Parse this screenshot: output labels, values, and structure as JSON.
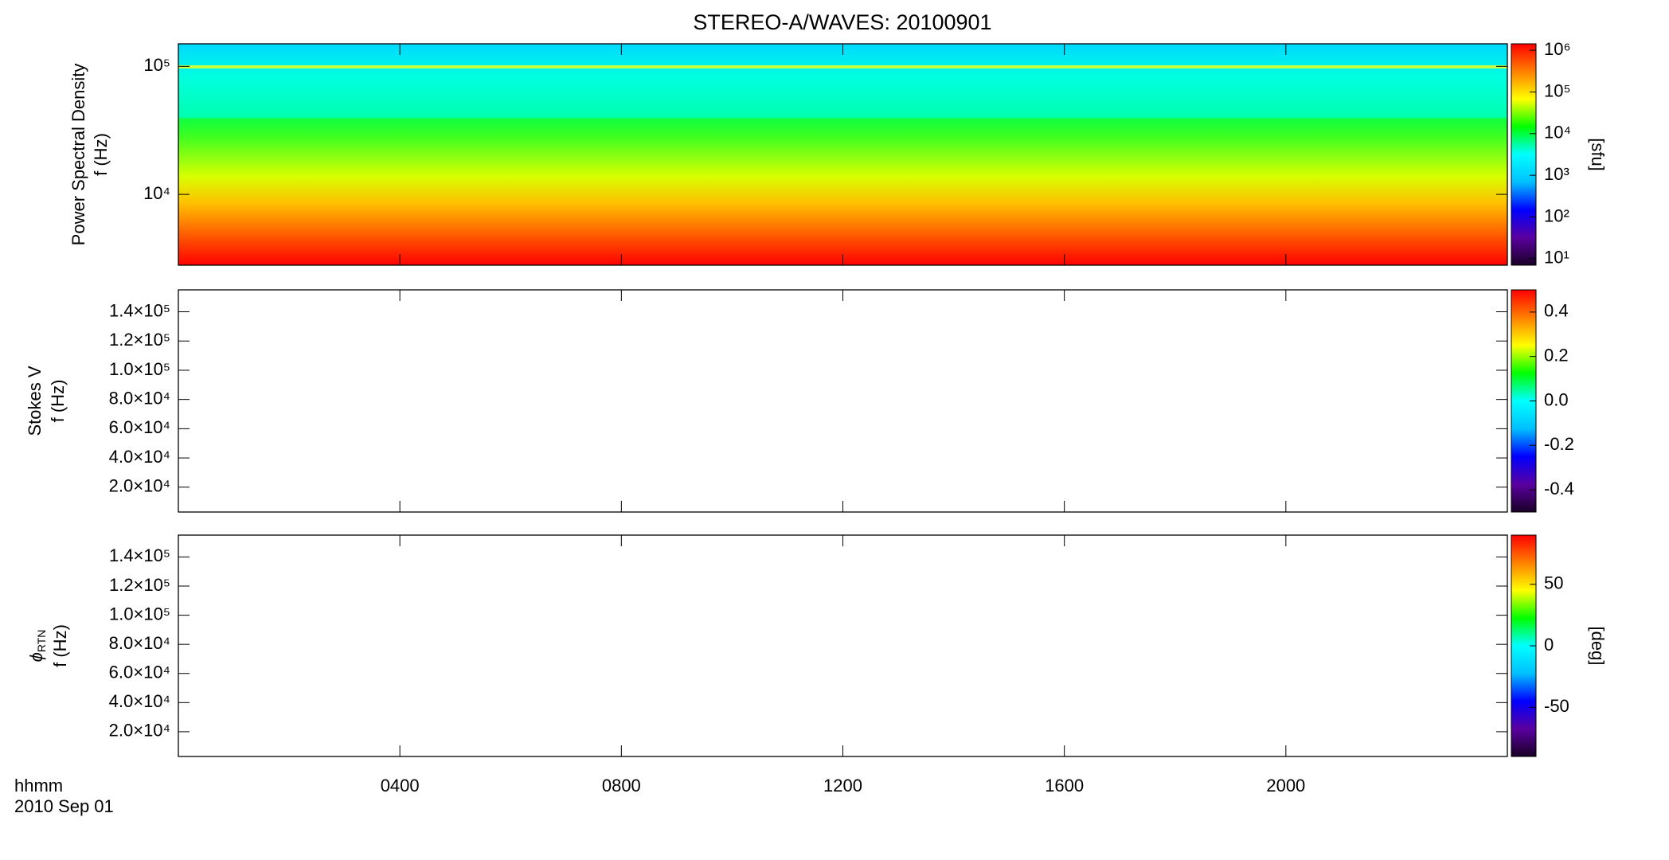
{
  "chart_data": [
    {
      "type": "heatmap",
      "title": "STEREO-A/WAVES: 20100901",
      "ylabel": [
        "Power Spectral Density",
        "f (Hz)"
      ],
      "log_y": true,
      "ylim": [
        2800,
        150000
      ],
      "yticks": [
        {
          "value": 10000,
          "label": "10⁴"
        },
        {
          "value": 100000,
          "label": "10⁵"
        }
      ],
      "colorbar": {
        "log": true,
        "zlim": [
          7,
          1430000
        ],
        "label": "[sfu]",
        "zticks": [
          {
            "value": 10,
            "label": "10¹"
          },
          {
            "value": 100,
            "label": "10²"
          },
          {
            "value": 1000,
            "label": "10³"
          },
          {
            "value": 10000,
            "label": "10⁴"
          },
          {
            "value": 100000,
            "label": "10⁵"
          },
          {
            "value": 1000000,
            "label": "10⁶"
          }
        ]
      },
      "colormap": [
        "#1a0026",
        "#5a00a0",
        "#0000ff",
        "#00c0ff",
        "#00ffff",
        "#00ff00",
        "#ffff00",
        "#ff8000",
        "#ff0000"
      ]
    },
    {
      "type": "heatmap",
      "ylabel": [
        "Stokes V",
        "f (Hz)"
      ],
      "log_y": false,
      "ylim": [
        3000,
        155000
      ],
      "yticks": [
        {
          "value": 20000,
          "label": "2.0×10⁴"
        },
        {
          "value": 40000,
          "label": "4.0×10⁴"
        },
        {
          "value": 60000,
          "label": "6.0×10⁴"
        },
        {
          "value": 80000,
          "label": "8.0×10⁴"
        },
        {
          "value": 100000,
          "label": "1.0×10⁵"
        },
        {
          "value": 120000,
          "label": "1.2×10⁵"
        },
        {
          "value": 140000,
          "label": "1.4×10⁵"
        }
      ],
      "colorbar": {
        "log": false,
        "zlim": [
          -0.5,
          0.5
        ],
        "zticks": [
          -0.4,
          -0.2,
          {
            "value": 0,
            "label": "0.0"
          },
          0.2,
          0.4
        ]
      },
      "colormap": [
        "#1a0026",
        "#5a00a0",
        "#0000ff",
        "#00c0ff",
        "#00ffff",
        "#00ff00",
        "#ffff00",
        "#ff8000",
        "#ff0000"
      ]
    },
    {
      "type": "heatmap",
      "ylabel": [
        "ϕ",
        "RTN",
        "f (Hz)"
      ],
      "log_y": false,
      "ylim": [
        3000,
        155000
      ],
      "yticks": [
        {
          "value": 20000,
          "label": "2.0×10⁴"
        },
        {
          "value": 40000,
          "label": "4.0×10⁴"
        },
        {
          "value": 60000,
          "label": "6.0×10⁴"
        },
        {
          "value": 80000,
          "label": "8.0×10⁴"
        },
        {
          "value": 100000,
          "label": "1.0×10⁵"
        },
        {
          "value": 120000,
          "label": "1.2×10⁵"
        },
        {
          "value": 140000,
          "label": "1.4×10⁵"
        }
      ],
      "colorbar": {
        "log": false,
        "zlim": [
          -90,
          90
        ],
        "label": "[deg]",
        "zticks": [
          -50,
          0,
          50
        ]
      },
      "colormap": [
        "#1a0026",
        "#5a00a0",
        "#0000ff",
        "#00c0ff",
        "#00ffff",
        "#00ff00",
        "#ffff00",
        "#ff8000",
        "#ff0000"
      ],
      "xlim": [
        0,
        24
      ],
      "xticks": [
        {
          "value": 4,
          "label": "0400"
        },
        {
          "value": 8,
          "label": "0800"
        },
        {
          "value": 12,
          "label": "1200"
        },
        {
          "value": 16,
          "label": "1600"
        },
        {
          "value": 20,
          "label": "2000"
        }
      ],
      "xlabel": [
        "hhmm",
        "2010 Sep 01"
      ]
    }
  ]
}
